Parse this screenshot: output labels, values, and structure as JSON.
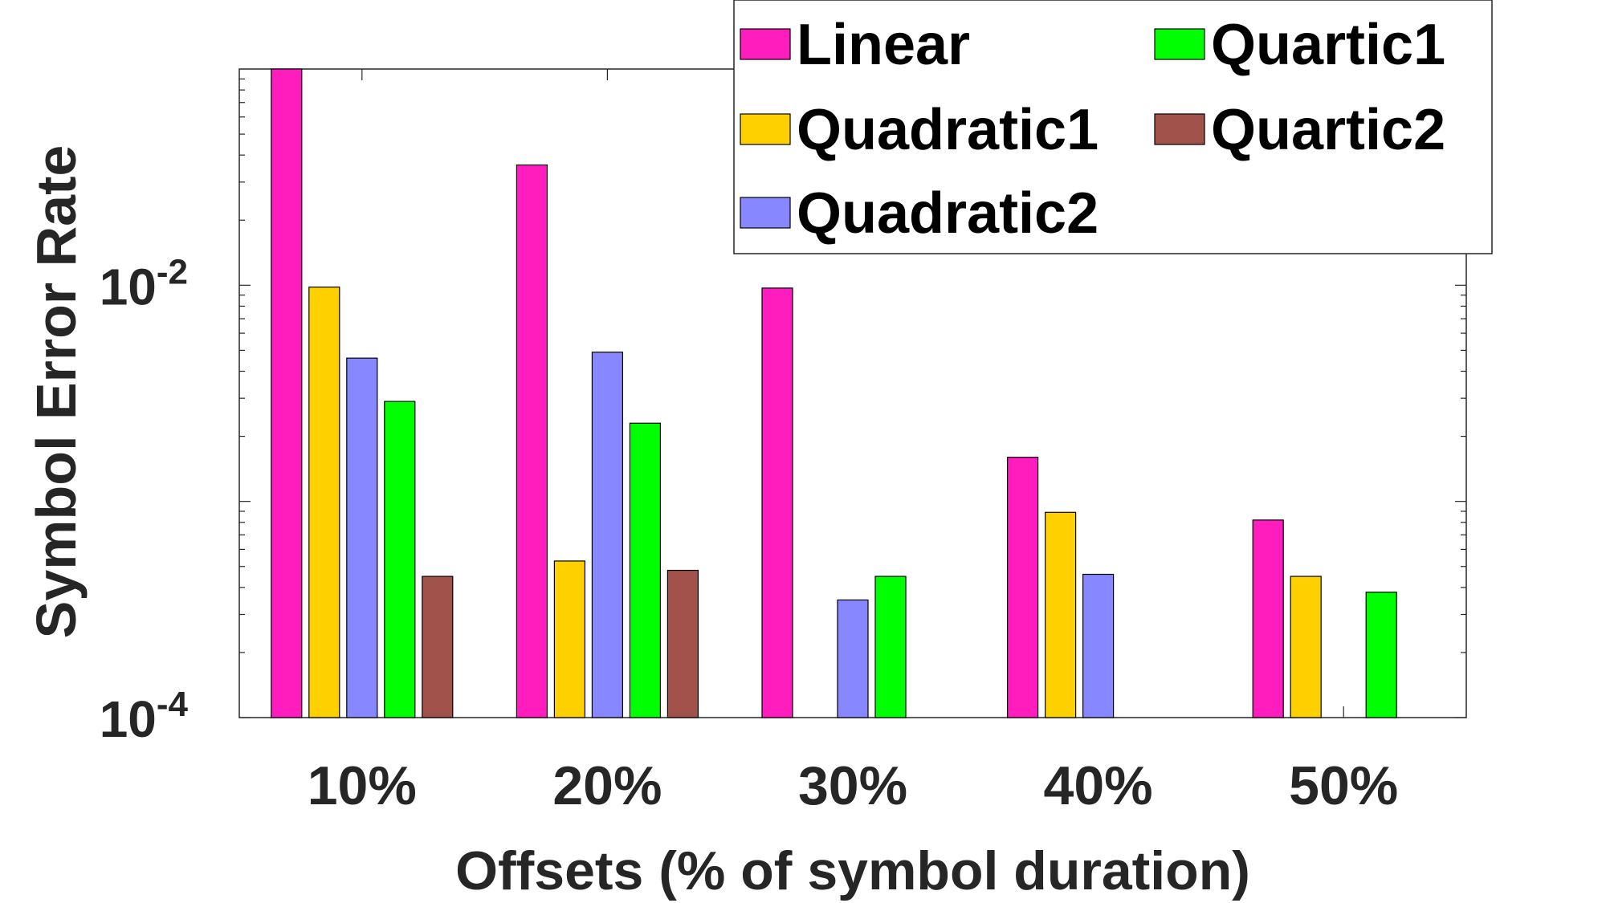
{
  "chart_data": {
    "type": "bar",
    "categories": [
      "10%",
      "20%",
      "30%",
      "40%",
      "50%"
    ],
    "xlabel": "Offsets (% of symbol duration)",
    "ylabel": "Symbol Error Rate",
    "yscale": "log",
    "ylim": [
      0.0001,
      0.1
    ],
    "ytick_labels": [
      {
        "value": 0.01,
        "base": "10",
        "exp": "-2"
      },
      {
        "value": 0.0001,
        "base": "10",
        "exp": "-4"
      }
    ],
    "grid": false,
    "legend_position": "top-right",
    "series": [
      {
        "name": "Linear",
        "color": "#ff1dbe",
        "values": [
          0.1,
          0.036,
          0.0097,
          0.0016,
          0.00082
        ]
      },
      {
        "name": "Quadratic1",
        "color": "#ffd000",
        "values": [
          0.0098,
          0.00053,
          null,
          0.00089,
          0.00045
        ]
      },
      {
        "name": "Quadratic2",
        "color": "#8787ff",
        "values": [
          0.0046,
          0.0049,
          0.00035,
          0.00046,
          null
        ]
      },
      {
        "name": "Quartic1",
        "color": "#00ff00",
        "values": [
          0.0029,
          0.0023,
          0.00045,
          null,
          0.00038
        ]
      },
      {
        "name": "Quartic2",
        "color": "#a0524b",
        "values": [
          0.00045,
          0.00048,
          null,
          null,
          null
        ]
      }
    ]
  }
}
